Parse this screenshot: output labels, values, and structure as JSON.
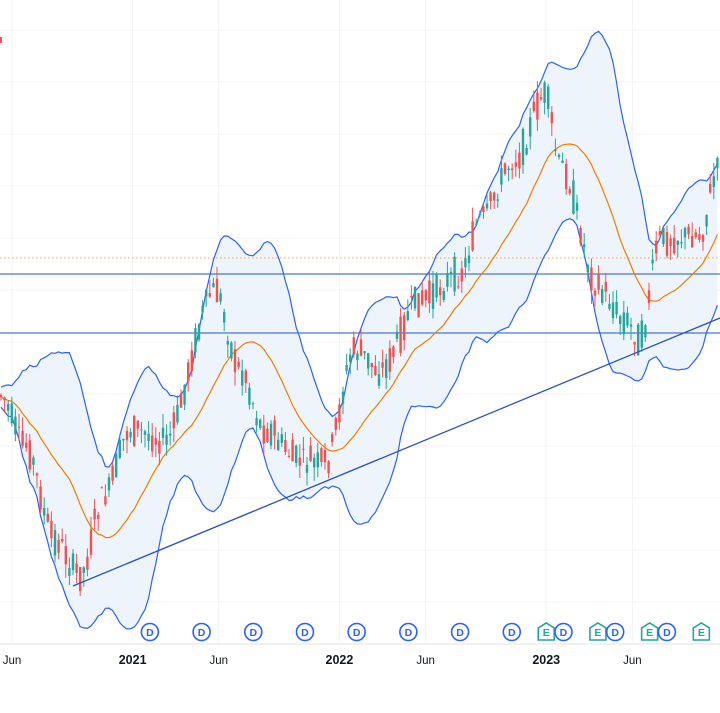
{
  "chart_data": {
    "type": "candlestick",
    "indicators": [
      "bollinger-bands",
      "moving-average"
    ],
    "x_axis": {
      "tick_labels": [
        "Jun",
        "2021",
        "Jun",
        "2022",
        "Jun",
        "2023",
        "Jun"
      ],
      "tick_dates": [
        "2020-06",
        "2021-01",
        "2021-06",
        "2022-01",
        "2022-06",
        "2023-01",
        "2023-06"
      ]
    },
    "event_markers": [
      {
        "label": "D",
        "date": "2021-02"
      },
      {
        "label": "D",
        "date": "2021-05"
      },
      {
        "label": "D",
        "date": "2021-08"
      },
      {
        "label": "D",
        "date": "2021-11"
      },
      {
        "label": "D",
        "date": "2022-02"
      },
      {
        "label": "D",
        "date": "2022-05"
      },
      {
        "label": "D",
        "date": "2022-08"
      },
      {
        "label": "D",
        "date": "2022-11"
      },
      {
        "label": "E",
        "date": "2023-01"
      },
      {
        "label": "D",
        "date": "2023-02"
      },
      {
        "label": "E",
        "date": "2023-04"
      },
      {
        "label": "D",
        "date": "2023-05"
      },
      {
        "label": "E",
        "date": "2023-07"
      },
      {
        "label": "D",
        "date": "2023-08"
      },
      {
        "label": "E",
        "date": "2023-10"
      }
    ],
    "horizontal_lines": [
      "upper-level",
      "lower-level",
      "dotted-level"
    ],
    "colors": {
      "up": "#26a69a",
      "down": "#ef5350",
      "bands": "#2962ff",
      "band_fill": "#eef4fb",
      "moving_average": "#f57c00",
      "levels": "#1e56c4",
      "dotted_level": "#e8a05b",
      "trendline": "#2a52be",
      "grid": "#f0f3fa",
      "axis_text": "#131722"
    }
  }
}
